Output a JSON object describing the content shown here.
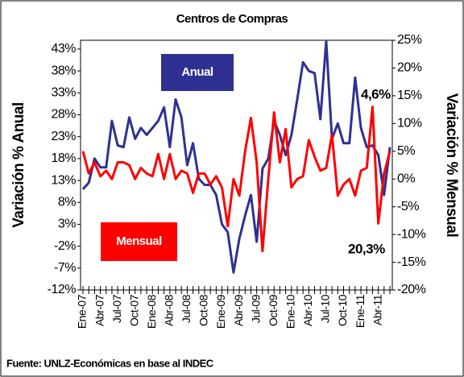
{
  "chart_data": {
    "type": "line",
    "title": "Centros de Compras",
    "ylabel": "Variación % Anual",
    "y2label": "Variación % Mensual",
    "source": "Fuente: UNLZ-Económicas en base al INDEC",
    "categories": [
      "Ene-07",
      null,
      null,
      "Abr-07",
      null,
      null,
      "Jul-07",
      null,
      null,
      "Oct-07",
      null,
      null,
      "Ene-08",
      null,
      null,
      "Abr-08",
      null,
      null,
      "Jul-08",
      null,
      null,
      "Oct-08",
      null,
      null,
      "Ene-09",
      null,
      null,
      "Abr-09",
      null,
      null,
      "Jul-09",
      null,
      null,
      "Oct-09",
      null,
      null,
      "Ene-10",
      null,
      null,
      "Abr-10",
      null,
      null,
      "Jul-10",
      null,
      null,
      "Oct-10",
      null,
      null,
      "Ene-11",
      null,
      null,
      "Abr-11",
      null,
      null
    ],
    "series": [
      {
        "name": "Anual",
        "color": "#2e3192",
        "axis": "y",
        "values": [
          11,
          12.5,
          18,
          16,
          16,
          26.6,
          21,
          20.6,
          27.4,
          22.5,
          25,
          23.4,
          25,
          26.6,
          29.7,
          20.6,
          31.5,
          27.4,
          16.5,
          21.5,
          13.4,
          12,
          12,
          9.7,
          3,
          1.2,
          -8,
          -0.3,
          5,
          9.7,
          -1,
          15.7,
          18,
          26.6,
          23.4,
          18.8,
          23.4,
          31.5,
          40,
          38,
          37.5,
          27,
          44.8,
          22.5,
          26,
          21.5,
          21.5,
          36.5,
          25,
          20.6,
          21,
          18.8,
          9.7,
          20.6
        ]
      },
      {
        "name": "Mensual",
        "color": "#ff0000",
        "axis": "y2",
        "values": [
          5,
          1,
          3,
          0.5,
          1.5,
          0,
          3,
          3,
          2.5,
          0,
          2,
          1,
          0.5,
          4.5,
          0,
          4.5,
          0,
          1.5,
          1,
          -2.5,
          1,
          1,
          -1,
          0.5,
          -1.5,
          -8.5,
          0,
          -3,
          5,
          11,
          3,
          -13,
          0,
          12,
          3,
          9,
          -1.5,
          0,
          0.5,
          7,
          4,
          1.5,
          2,
          8,
          -3,
          -1,
          0,
          -3,
          1.5,
          2,
          13,
          -8,
          1,
          5
        ]
      }
    ],
    "annotations": [
      "4,6%",
      "20,3%"
    ],
    "ylim": [
      -12,
      45
    ],
    "yticks": [
      {
        "value": -12,
        "label": "-12%"
      },
      {
        "value": -7,
        "label": "-7%"
      },
      {
        "value": -2,
        "label": "-2%"
      },
      {
        "value": 3,
        "label": "3%"
      },
      {
        "value": 8,
        "label": "8%"
      },
      {
        "value": 13,
        "label": "13%"
      },
      {
        "value": 18,
        "label": "18%"
      },
      {
        "value": 23,
        "label": "23%"
      },
      {
        "value": 28,
        "label": "28%"
      },
      {
        "value": 33,
        "label": "33%"
      },
      {
        "value": 38,
        "label": "38%"
      },
      {
        "value": 43,
        "label": "43%"
      }
    ],
    "y2lim": [
      -20,
      25
    ],
    "y2ticks": [
      {
        "value": -20,
        "label": "-20%"
      },
      {
        "value": -15,
        "label": "-15%"
      },
      {
        "value": -10,
        "label": "-10%"
      },
      {
        "value": -5,
        "label": "-5%"
      },
      {
        "value": 0,
        "label": "0%"
      },
      {
        "value": 5,
        "label": "5%"
      },
      {
        "value": 10,
        "label": "10%"
      },
      {
        "value": 15,
        "label": "15%"
      },
      {
        "value": 20,
        "label": "20%"
      },
      {
        "value": 25,
        "label": "25%"
      }
    ],
    "grid": false
  }
}
